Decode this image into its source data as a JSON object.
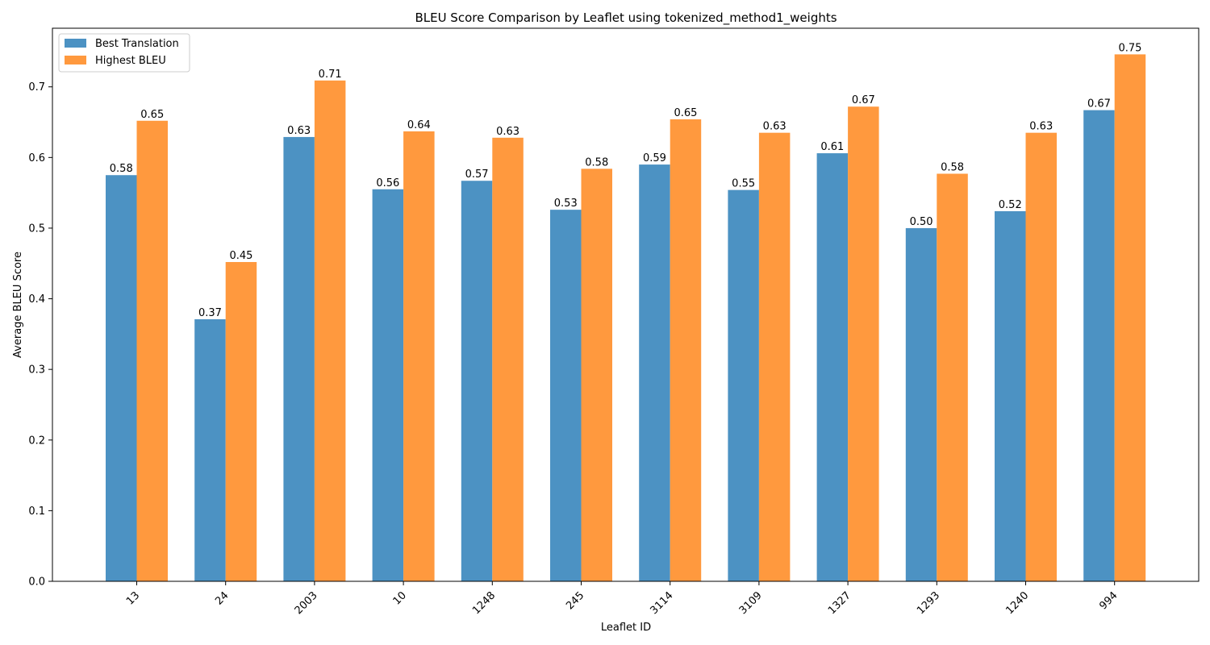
{
  "chart_data": {
    "type": "bar",
    "title": "BLEU Score Comparison by Leaflet using tokenized_method1_weights",
    "xlabel": "Leaflet ID",
    "ylabel": "Average BLEU Score",
    "categories": [
      "13",
      "24",
      "2003",
      "10",
      "1248",
      "245",
      "3114",
      "3109",
      "1327",
      "1293",
      "1240",
      "994"
    ],
    "series": [
      {
        "name": "Best Translation",
        "color": "#4c92c3",
        "values": [
          0.575,
          0.371,
          0.629,
          0.555,
          0.567,
          0.526,
          0.59,
          0.554,
          0.606,
          0.5,
          0.524,
          0.667
        ],
        "labels": [
          "0.58",
          "0.37",
          "0.63",
          "0.56",
          "0.57",
          "0.53",
          "0.59",
          "0.55",
          "0.61",
          "0.50",
          "0.52",
          "0.67"
        ]
      },
      {
        "name": "Highest BLEU",
        "color": "#ff993e",
        "values": [
          0.652,
          0.452,
          0.709,
          0.637,
          0.628,
          0.584,
          0.654,
          0.635,
          0.672,
          0.577,
          0.635,
          0.746
        ],
        "labels": [
          "0.65",
          "0.45",
          "0.71",
          "0.64",
          "0.63",
          "0.58",
          "0.65",
          "0.63",
          "0.67",
          "0.58",
          "0.63",
          "0.75"
        ]
      }
    ],
    "yticks": [
      "0.0",
      "0.1",
      "0.2",
      "0.3",
      "0.4",
      "0.5",
      "0.6",
      "0.7"
    ],
    "ylim": [
      0,
      0.783
    ],
    "legend_position": "top-left",
    "grid": false
  }
}
